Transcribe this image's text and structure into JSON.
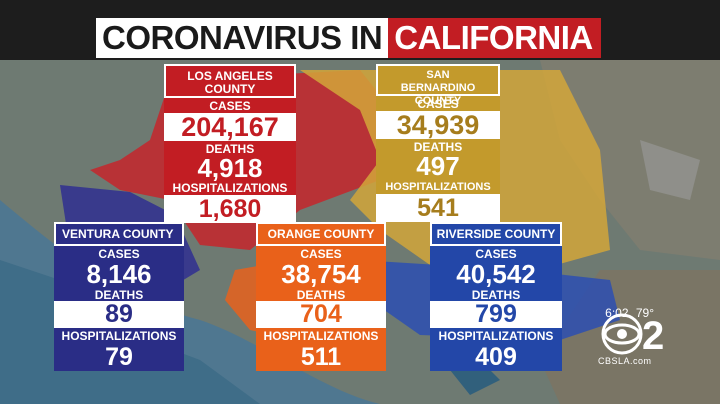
{
  "banner": {
    "part1": "CORONAVIRUS IN",
    "part2": "CALIFORNIA"
  },
  "la": {
    "name": "LOS ANGELES COUNTY",
    "cases_label": "CASES",
    "cases": "204,167",
    "deaths_label": "DEATHS",
    "deaths": "4,918",
    "hosp_label": "HOSPITALIZATIONS",
    "hosp": "1,680",
    "color": "#c21d23"
  },
  "sb": {
    "name": "SAN BERNARDINO COUNTY",
    "cases_label": "CASES",
    "cases": "34,939",
    "deaths_label": "DEATHS",
    "deaths": "497",
    "hosp_label": "HOSPITALIZATIONS",
    "hosp": "541",
    "color": "#c39a2c"
  },
  "ventura": {
    "name": "VENTURA COUNTY",
    "cases_label": "CASES",
    "cases": "8,146",
    "deaths_label": "DEATHS",
    "deaths": "89",
    "hosp_label": "HOSPITALIZATIONS",
    "hosp": "79",
    "color": "#2a2d86"
  },
  "orange": {
    "name": "ORANGE COUNTY",
    "cases_label": "CASES",
    "cases": "38,754",
    "deaths_label": "DEATHS",
    "deaths": "704",
    "hosp_label": "HOSPITALIZATIONS",
    "hosp": "511",
    "color": "#e9611a"
  },
  "riverside": {
    "name": "RIVERSIDE COUNTY",
    "cases_label": "CASES",
    "cases": "40,542",
    "deaths_label": "DEATHS",
    "deaths": "799",
    "hosp_label": "HOSPITALIZATIONS",
    "hosp": "409",
    "color": "#2347a8"
  },
  "bug": {
    "time": "6:02",
    "temp": "79°",
    "station_site": "CBSLA.com",
    "logo_text": "2"
  }
}
